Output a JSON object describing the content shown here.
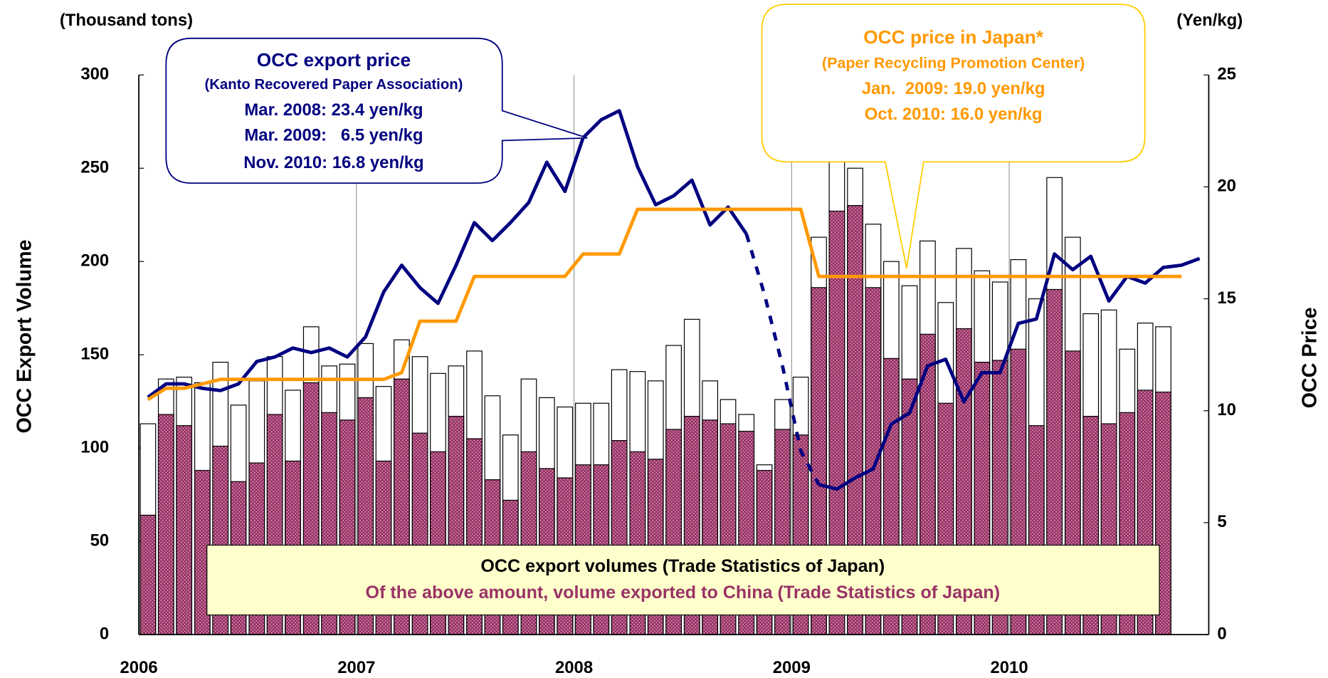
{
  "chart_data": {
    "type": "bar",
    "y_label": "OCC Export Volume",
    "y_unit": "(Thousand tons)",
    "y2_label": "OCC Price",
    "y2_unit": "(Yen/kg)",
    "xlim": [
      2006,
      2010.917
    ],
    "xticks": [
      2006,
      2007,
      2008,
      2009,
      2010
    ],
    "ylim": [
      0,
      300
    ],
    "yticks": [
      0,
      50,
      100,
      150,
      200,
      250,
      300
    ],
    "y2lim": [
      0,
      25
    ],
    "y2ticks": [
      0,
      5,
      10,
      15,
      20,
      25
    ],
    "grid": "x",
    "x": [
      2006.042,
      2006.125,
      2006.208,
      2006.292,
      2006.375,
      2006.458,
      2006.542,
      2006.625,
      2006.708,
      2006.792,
      2006.875,
      2006.958,
      2007.042,
      2007.125,
      2007.208,
      2007.292,
      2007.375,
      2007.458,
      2007.542,
      2007.625,
      2007.708,
      2007.792,
      2007.875,
      2007.958,
      2008.042,
      2008.125,
      2008.208,
      2008.292,
      2008.375,
      2008.458,
      2008.542,
      2008.625,
      2008.708,
      2008.792,
      2008.875,
      2008.958,
      2009.042,
      2009.125,
      2009.208,
      2009.292,
      2009.375,
      2009.458,
      2009.542,
      2009.625,
      2009.708,
      2009.792,
      2009.875,
      2009.958,
      2010.042,
      2010.125,
      2010.208,
      2010.292,
      2010.375,
      2010.458,
      2010.542,
      2010.625,
      2010.708,
      2010.792,
      2010.875
    ],
    "series": [
      {
        "name": "OCC export volumes (Trade Statistics of Japan)",
        "type": "bar",
        "color": "#ffffff",
        "text_color": "#000000",
        "values": [
          113,
          137,
          138,
          135,
          146,
          123,
          136,
          149,
          131,
          165,
          144,
          145,
          156,
          133,
          158,
          149,
          140,
          144,
          152,
          128,
          107,
          137,
          127,
          122,
          124,
          124,
          142,
          141,
          136,
          155,
          169,
          136,
          126,
          118,
          91,
          126,
          138,
          213,
          255,
          250,
          220,
          200,
          187,
          211,
          178,
          207,
          195,
          189,
          201,
          180,
          245,
          213,
          172,
          174,
          153,
          167,
          165,
          null,
          null
        ]
      },
      {
        "name": "Of the above amount, volume exported to China (Trade Statistics of Japan)",
        "type": "bar",
        "color": "#993366",
        "text_color": "#993366",
        "values": [
          64,
          118,
          112,
          88,
          101,
          82,
          92,
          118,
          93,
          135,
          119,
          115,
          127,
          93,
          137,
          108,
          98,
          117,
          105,
          83,
          72,
          98,
          89,
          84,
          91,
          91,
          104,
          98,
          94,
          110,
          117,
          115,
          113,
          109,
          88,
          110,
          107,
          186,
          227,
          230,
          186,
          148,
          137,
          161,
          124,
          164,
          146,
          147,
          153,
          112,
          185,
          152,
          117,
          113,
          119,
          131,
          130,
          null,
          null
        ]
      },
      {
        "name": "OCC export price",
        "type": "line",
        "axis": "y2",
        "color": "#000080",
        "source": "(Kanto Recovered Paper Association)",
        "notes": [
          "Mar. 2008: 23.4 yen/kg",
          "Mar. 2009:   6.5 yen/kg",
          "Nov. 2010: 16.8 yen/kg"
        ],
        "dashed_range": [
          33,
          37
        ],
        "values": [
          10.6,
          11.2,
          11.2,
          11.0,
          10.9,
          11.2,
          12.2,
          12.4,
          12.8,
          12.6,
          12.8,
          12.4,
          13.3,
          15.3,
          16.5,
          15.5,
          14.8,
          16.5,
          18.4,
          17.6,
          18.4,
          19.3,
          21.1,
          19.8,
          22.2,
          23.0,
          23.4,
          20.9,
          19.2,
          19.6,
          20.3,
          18.3,
          19.1,
          17.9,
          15.2,
          12.0,
          8.2,
          6.7,
          6.5,
          7.0,
          7.4,
          9.4,
          9.9,
          12.0,
          12.3,
          10.4,
          11.7,
          11.7,
          13.9,
          14.1,
          17.0,
          16.3,
          16.9,
          14.9,
          16.0,
          15.7,
          16.4,
          16.5,
          16.8
        ]
      },
      {
        "name": "OCC price in Japan*",
        "type": "line",
        "axis": "y2",
        "color": "#ff9900",
        "source": "(Paper Recycling Promotion Center)",
        "notes": [
          "Jan.  2009: 19.0 yen/kg",
          "Oct. 2010: 16.0 yen/kg"
        ],
        "values": [
          10.5,
          11.0,
          11.0,
          11.2,
          11.4,
          11.4,
          11.4,
          11.4,
          11.4,
          11.4,
          11.4,
          11.4,
          11.4,
          11.4,
          11.7,
          14.0,
          14.0,
          14.0,
          16.0,
          16.0,
          16.0,
          16.0,
          16.0,
          16.0,
          17.0,
          17.0,
          17.0,
          19.0,
          19.0,
          19.0,
          19.0,
          19.0,
          19.0,
          19.0,
          19.0,
          19.0,
          19.0,
          16.0,
          16.0,
          16.0,
          16.0,
          16.0,
          16.0,
          16.0,
          16.0,
          16.0,
          16.0,
          16.0,
          16.0,
          16.0,
          16.0,
          16.0,
          16.0,
          16.0,
          16.0,
          16.0,
          16.0,
          16.0,
          null
        ]
      }
    ]
  }
}
